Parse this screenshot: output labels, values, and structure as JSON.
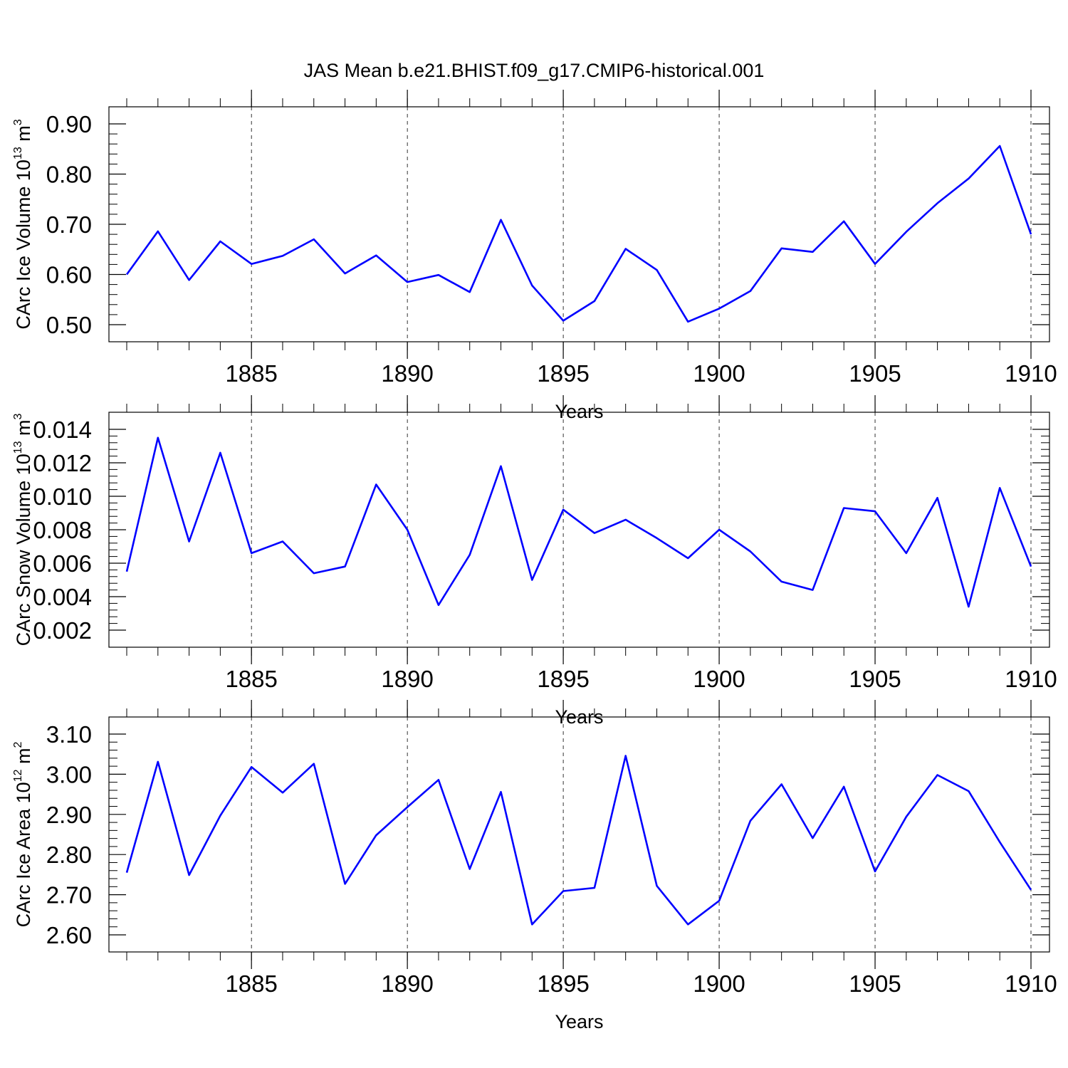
{
  "title": "JAS Mean b.e21.BHIST.f09_g17.CMIP6-historical.001",
  "colors": {
    "series": "#0000ff",
    "axis": "#000000",
    "grid": "#000000"
  },
  "chart_data": [
    {
      "type": "line",
      "ylabel": {
        "text": "CArc Ice Volume 10",
        "exp": "13",
        "unit": " m",
        "unit_exp": "3"
      },
      "xlabel": "Years",
      "xlim": [
        1881,
        1910
      ],
      "ylim": [
        0.5,
        0.9
      ],
      "xticks": [
        1885,
        1890,
        1895,
        1900,
        1905,
        1910
      ],
      "yticks": [
        "0.50",
        "0.60",
        "0.70",
        "0.80",
        "0.90"
      ],
      "grid": "vertical dashed at major x ticks",
      "series": [
        {
          "x": [
            1881,
            1882,
            1883,
            1884,
            1885,
            1886,
            1887,
            1888,
            1889,
            1890,
            1891,
            1892,
            1893,
            1894,
            1895,
            1896,
            1897,
            1898,
            1899,
            1900,
            1901,
            1902,
            1903,
            1904,
            1905,
            1906,
            1907,
            1908,
            1909,
            1910
          ],
          "values": [
            0.6,
            0.686,
            0.589,
            0.666,
            0.621,
            0.637,
            0.67,
            0.602,
            0.638,
            0.585,
            0.599,
            0.565,
            0.709,
            0.578,
            0.508,
            0.547,
            0.651,
            0.609,
            0.506,
            0.532,
            0.567,
            0.652,
            0.645,
            0.706,
            0.621,
            0.685,
            0.742,
            0.791,
            0.856,
            0.68
          ]
        }
      ]
    },
    {
      "type": "line",
      "ylabel": {
        "text": "CArc Snow Volume 10",
        "exp": "13",
        "unit": " m",
        "unit_exp": "3"
      },
      "xlabel": "Years",
      "xlim": [
        1881,
        1910
      ],
      "ylim": [
        0.002,
        0.014
      ],
      "xticks": [
        1885,
        1890,
        1895,
        1900,
        1905,
        1910
      ],
      "yticks": [
        "0.002",
        "0.004",
        "0.006",
        "0.008",
        "0.010",
        "0.012",
        "0.014"
      ],
      "grid": "vertical dashed at major x ticks",
      "series": [
        {
          "x": [
            1881,
            1882,
            1883,
            1884,
            1885,
            1886,
            1887,
            1888,
            1889,
            1890,
            1891,
            1892,
            1893,
            1894,
            1895,
            1896,
            1897,
            1898,
            1899,
            1900,
            1901,
            1902,
            1903,
            1904,
            1905,
            1906,
            1907,
            1908,
            1909,
            1910
          ],
          "values": [
            0.0055,
            0.0135,
            0.0073,
            0.0126,
            0.0066,
            0.0073,
            0.0054,
            0.0058,
            0.0107,
            0.008,
            0.0035,
            0.0065,
            0.0118,
            0.005,
            0.0092,
            0.0078,
            0.0086,
            0.0075,
            0.0063,
            0.008,
            0.0067,
            0.0049,
            0.0044,
            0.0093,
            0.0091,
            0.0066,
            0.0099,
            0.0034,
            0.0105,
            0.0058
          ]
        }
      ]
    },
    {
      "type": "line",
      "ylabel": {
        "text": "CArc Ice Area 10",
        "exp": "12",
        "unit": " m",
        "unit_exp": "2"
      },
      "xlabel": "Years",
      "xlim": [
        1881,
        1910
      ],
      "ylim": [
        2.6,
        3.1
      ],
      "xticks": [
        1885,
        1890,
        1895,
        1900,
        1905,
        1910
      ],
      "yticks": [
        "2.60",
        "2.70",
        "2.80",
        "2.90",
        "3.00",
        "3.10"
      ],
      "grid": "vertical dashed at major x ticks",
      "series": [
        {
          "x": [
            1881,
            1882,
            1883,
            1884,
            1885,
            1886,
            1887,
            1888,
            1889,
            1890,
            1891,
            1892,
            1893,
            1894,
            1895,
            1896,
            1897,
            1898,
            1899,
            1900,
            1901,
            1902,
            1903,
            1904,
            1905,
            1906,
            1907,
            1908,
            1909,
            1910
          ],
          "values": [
            2.755,
            3.031,
            2.749,
            2.897,
            3.018,
            2.954,
            3.026,
            2.727,
            2.848,
            2.918,
            2.986,
            2.764,
            2.956,
            2.626,
            2.709,
            2.717,
            3.046,
            2.722,
            2.626,
            2.685,
            2.884,
            2.975,
            2.841,
            2.969,
            2.758,
            2.894,
            2.998,
            2.958,
            2.831,
            2.712
          ]
        }
      ]
    }
  ]
}
